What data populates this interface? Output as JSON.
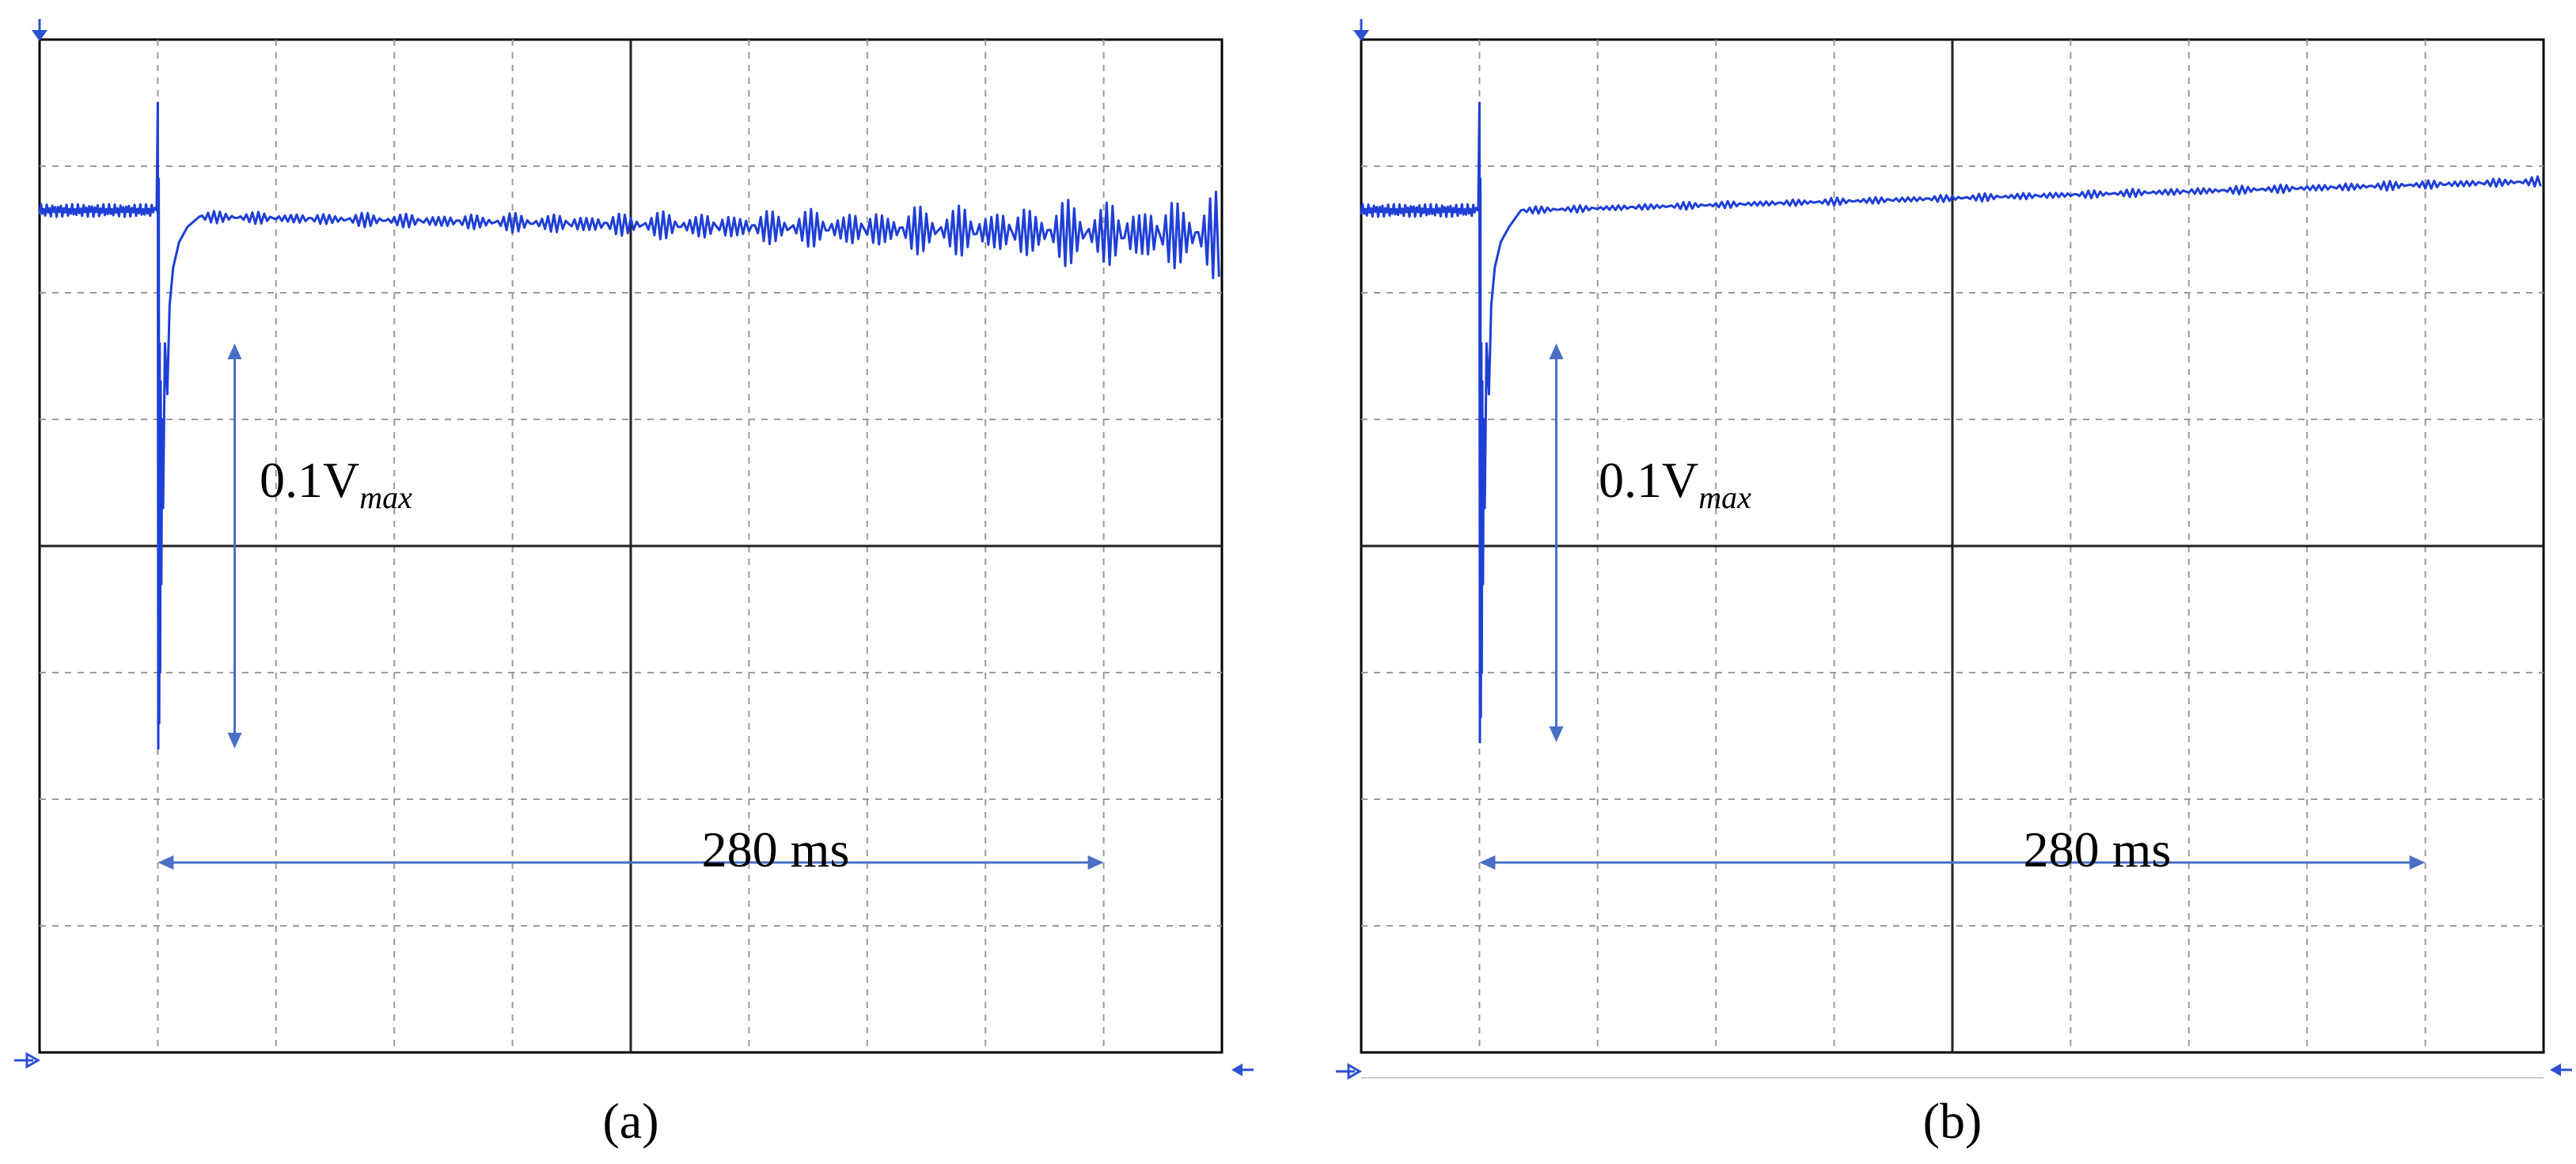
{
  "panels": [
    {
      "caption": "(a)",
      "amplitude_label": {
        "prefix": "0.1V",
        "subscript": "max"
      },
      "time_label": "280 ms",
      "chart_data": {
        "type": "line",
        "title": "",
        "xlabel": "",
        "ylabel": "",
        "xlim": [
          0,
          10
        ],
        "ylim": [
          -4,
          4
        ],
        "grid": true,
        "legend": "none",
        "series": [
          {
            "name": "",
            "color": "#1f3fd6",
            "pre_event_level": 2.65,
            "pre_event_ripple": 0.05,
            "event_time": 1.0,
            "spike_peak": 3.5,
            "spike_trough": -1.6,
            "settle_time": 1.35,
            "settled_level": 2.6,
            "end_level": 2.45,
            "ripple_start": 0.05,
            "ripple_end": 0.35
          }
        ],
        "annotations": {
          "vertical_arrow": {
            "x": 1.65,
            "y_from": 1.6,
            "y_to": -1.6
          },
          "horizontal_arrow": {
            "x_from": 1.0,
            "x_to": 9.0,
            "y": -2.5
          }
        }
      }
    },
    {
      "caption": "(b)",
      "amplitude_label": {
        "prefix": "0.1V",
        "subscript": "max"
      },
      "time_label": "280 ms",
      "chart_data": {
        "type": "line",
        "title": "",
        "xlabel": "",
        "ylabel": "",
        "xlim": [
          0,
          10
        ],
        "ylim": [
          -4,
          4
        ],
        "grid": true,
        "legend": "none",
        "series": [
          {
            "name": "",
            "color": "#1f3fd6",
            "pre_event_level": 2.65,
            "pre_event_ripple": 0.05,
            "event_time": 1.0,
            "spike_peak": 3.5,
            "spike_trough": -1.55,
            "settle_time": 1.35,
            "settled_level": 2.65,
            "end_level": 2.88,
            "ripple_start": 0.03,
            "ripple_end": 0.04
          }
        ],
        "annotations": {
          "vertical_arrow": {
            "x": 1.65,
            "y_from": 1.6,
            "y_to": -1.55
          },
          "horizontal_arrow": {
            "x_from": 1.0,
            "x_to": 9.0,
            "y": -2.5
          }
        }
      }
    }
  ]
}
